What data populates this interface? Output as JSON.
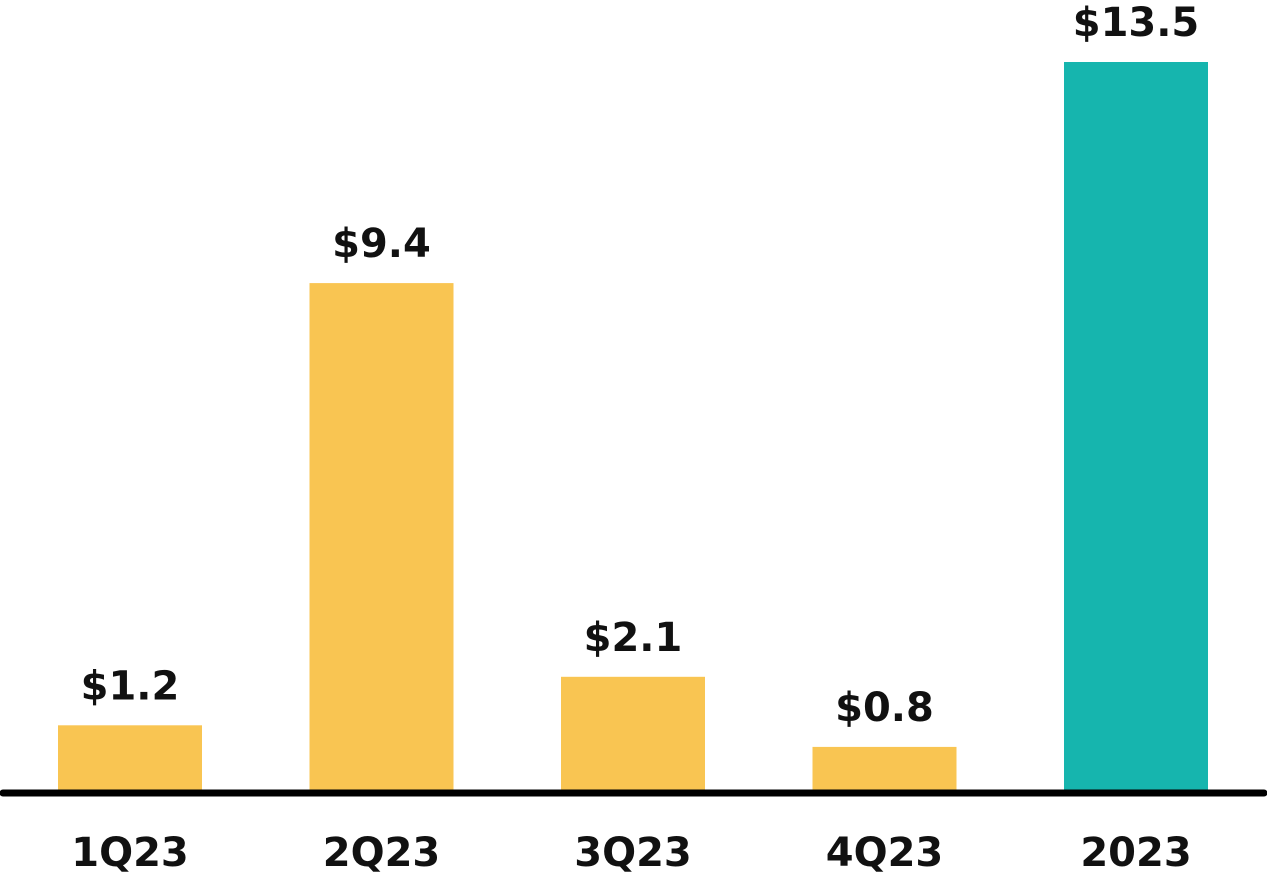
{
  "chart_data": {
    "type": "bar",
    "title": "",
    "xlabel": "",
    "ylabel": "",
    "categories": [
      "1Q23",
      "2Q23",
      "3Q23",
      "4Q23",
      "2023"
    ],
    "values": [
      1.2,
      9.4,
      2.1,
      0.8,
      13.5
    ],
    "data_labels": [
      "$1.2",
      "$9.4",
      "$2.1",
      "$0.8",
      "$13.5"
    ],
    "ylim": [
      0,
      13.5
    ],
    "grid": false,
    "legend": "none",
    "colors": {
      "quarter": "#F9C552",
      "total": "#16B5AE",
      "axis": "#000000",
      "text": "#111111"
    },
    "bar_color_keys": [
      "quarter",
      "quarter",
      "quarter",
      "quarter",
      "total"
    ]
  }
}
